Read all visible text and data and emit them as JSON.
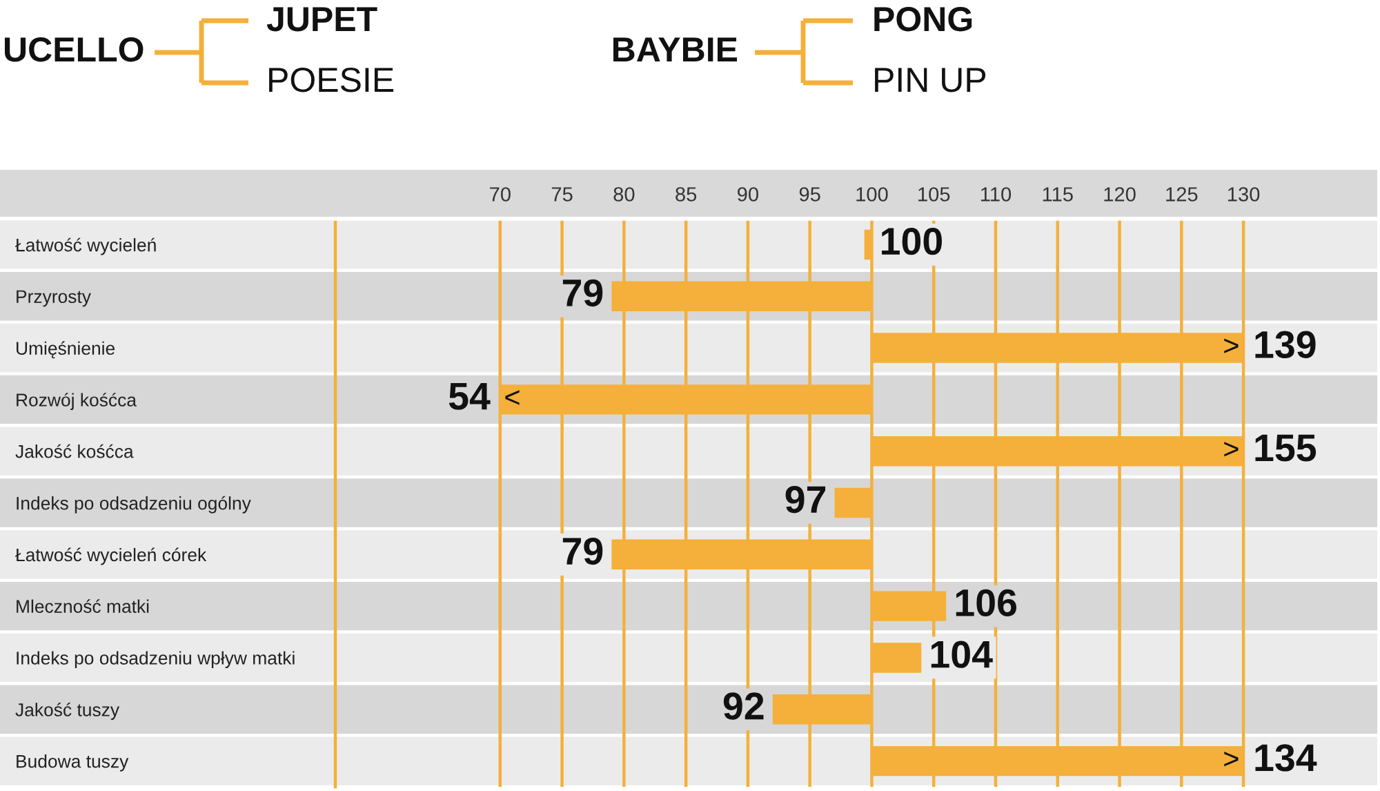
{
  "chart_data": {
    "type": "bar",
    "orientation": "horizontal",
    "categories": [
      "Łatwość wycieleń",
      "Przyrosty",
      "Umięśnienie",
      "Rozwój kośćca",
      "Jakość kośćca",
      "Indeks po odsadzeniu ogólny",
      "Łatwość wycieleń córek",
      "Mleczność matki",
      "Indeks po odsadzeniu wpływ matki",
      "Jakość tuszy",
      "Budowa tuszy"
    ],
    "base": [
      99.4,
      100,
      100,
      100,
      100,
      100,
      100,
      100,
      100,
      100,
      100
    ],
    "values": [
      0.6,
      -21,
      30,
      -30,
      30,
      -3,
      -21,
      6,
      4,
      -8,
      30
    ],
    "value_labels": [
      "100",
      "79",
      null,
      null,
      null,
      "97",
      "79",
      "106",
      "104",
      "92",
      null
    ],
    "color": "#f4b03a",
    "xlim": [
      56.7,
      140.8
    ],
    "xticks": [
      70,
      75,
      80,
      85,
      90,
      95,
      100,
      105,
      110,
      115,
      120,
      125,
      130
    ],
    "grid": "x",
    "annotations": [
      "UCELLO",
      "JUPET",
      "POESIE",
      "BAYBIE",
      "PONG",
      "PIN UP",
      ">",
      "<",
      ">",
      ">",
      "139",
      "54",
      "155",
      "134"
    ]
  }
}
